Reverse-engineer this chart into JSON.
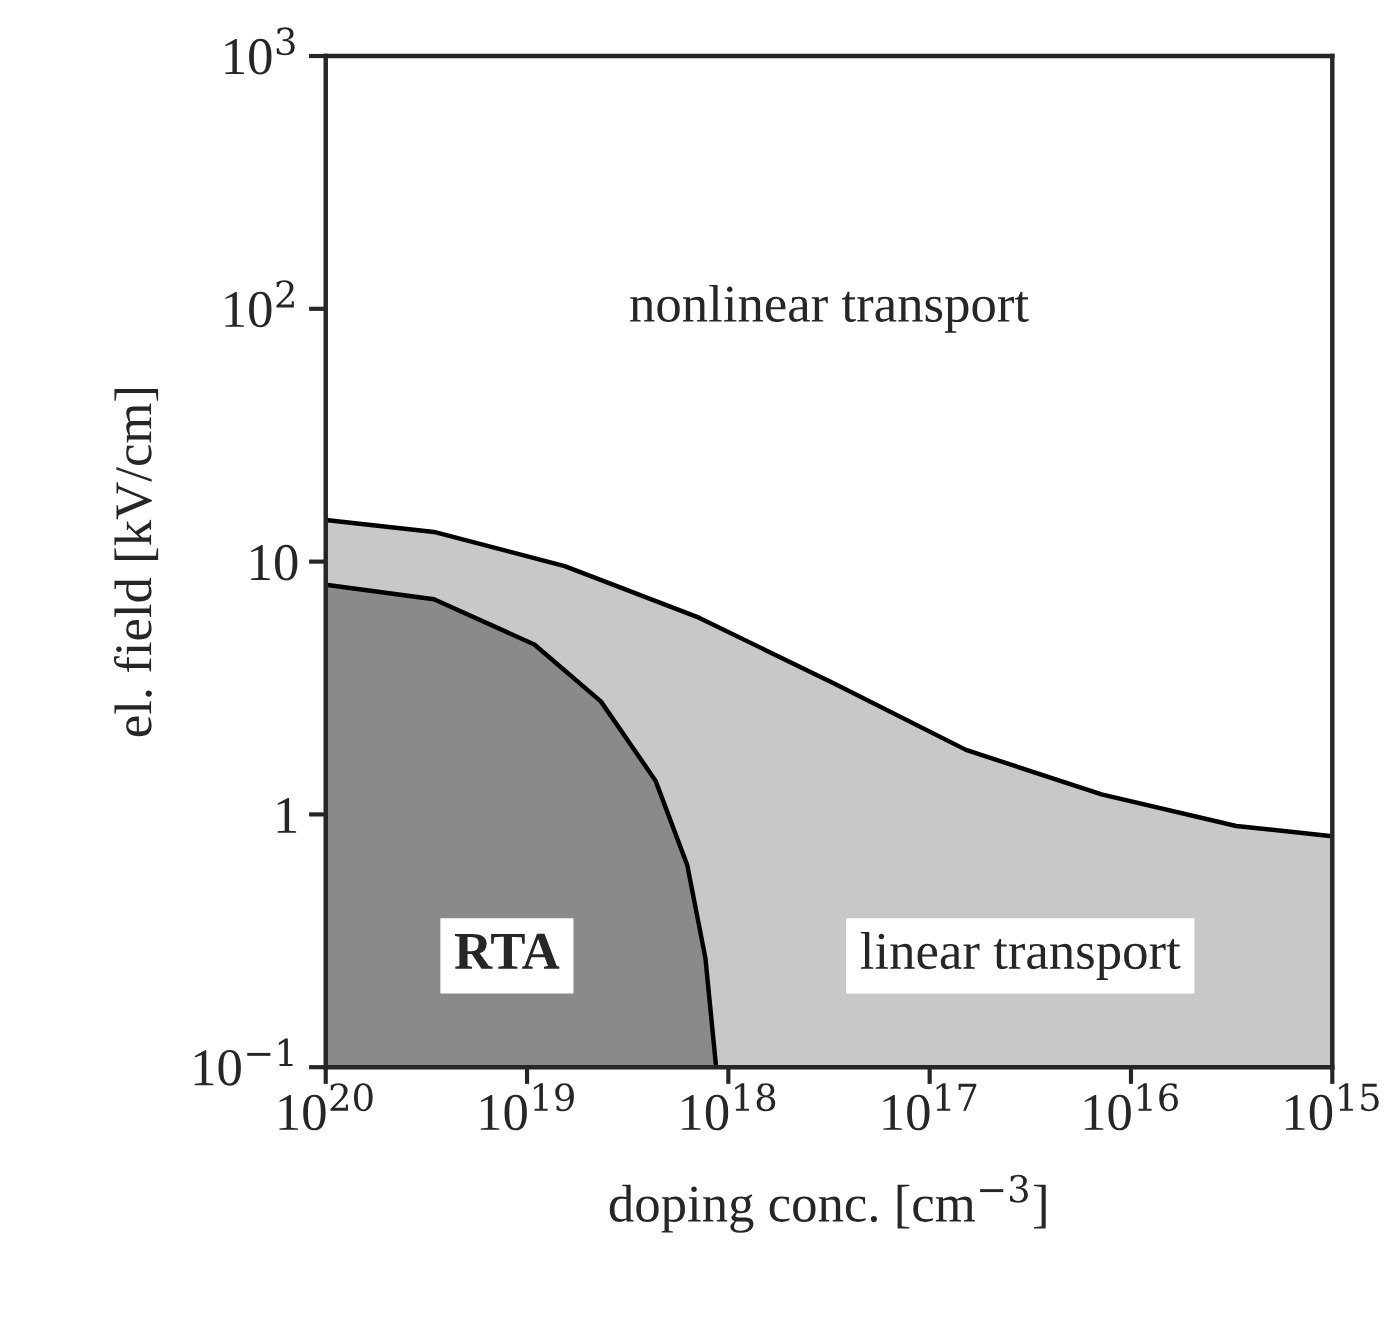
{
  "chart_data": {
    "type": "area",
    "xlabel": "doping conc. [cm$^{−3}$]",
    "ylabel": "el. field [kV/cm]",
    "log": "xy",
    "xlim": [
      1e+20,
      1000000000000000.0
    ],
    "ylim": [
      0.1,
      1000
    ],
    "xticks": [
      {
        "value": 1e+20,
        "label": "10$^{20}$"
      },
      {
        "value": 1e+19,
        "label": "10$^{19}$"
      },
      {
        "value": 1e+18,
        "label": "10$^{18}$"
      },
      {
        "value": 1e+17,
        "label": "10$^{17}$"
      },
      {
        "value": 1e+16,
        "label": "10$^{16}$"
      },
      {
        "value": 1000000000000000.0,
        "label": "10$^{15}$"
      }
    ],
    "yticks": [
      {
        "value": 0.1,
        "label": "10$^{−1}$"
      },
      1,
      10,
      {
        "value": 100,
        "label": "10$^{2}$"
      },
      {
        "value": 1000,
        "label": "10$^{3}$"
      }
    ],
    "grid": false,
    "series": [
      {
        "color": "#c8c8c8",
        "x": [
          1e+20,
          2.9e+19,
          6.5e+18,
          1.4e+18,
          3e+17,
          6.6e+16,
          1.4e+16,
          3000000000000000.0,
          1000000000000000.0
        ],
        "values": [
          14.6,
          13.1,
          9.6,
          6.0,
          3.3,
          1.8,
          1.2,
          0.9,
          0.82
        ]
      },
      {
        "color": "#8a8a8a",
        "x": [
          1e+20,
          2.9e+19,
          9.2e+18,
          4.3e+18,
          2.3e+18,
          1.6e+18,
          1.3e+18,
          1.15e+18
        ],
        "values": [
          8.1,
          7.1,
          4.7,
          2.8,
          1.36,
          0.63,
          0.27,
          0.1
        ]
      }
    ],
    "annotations": [
      "nonlinear transport",
      "RTA",
      "linear transport"
    ]
  }
}
